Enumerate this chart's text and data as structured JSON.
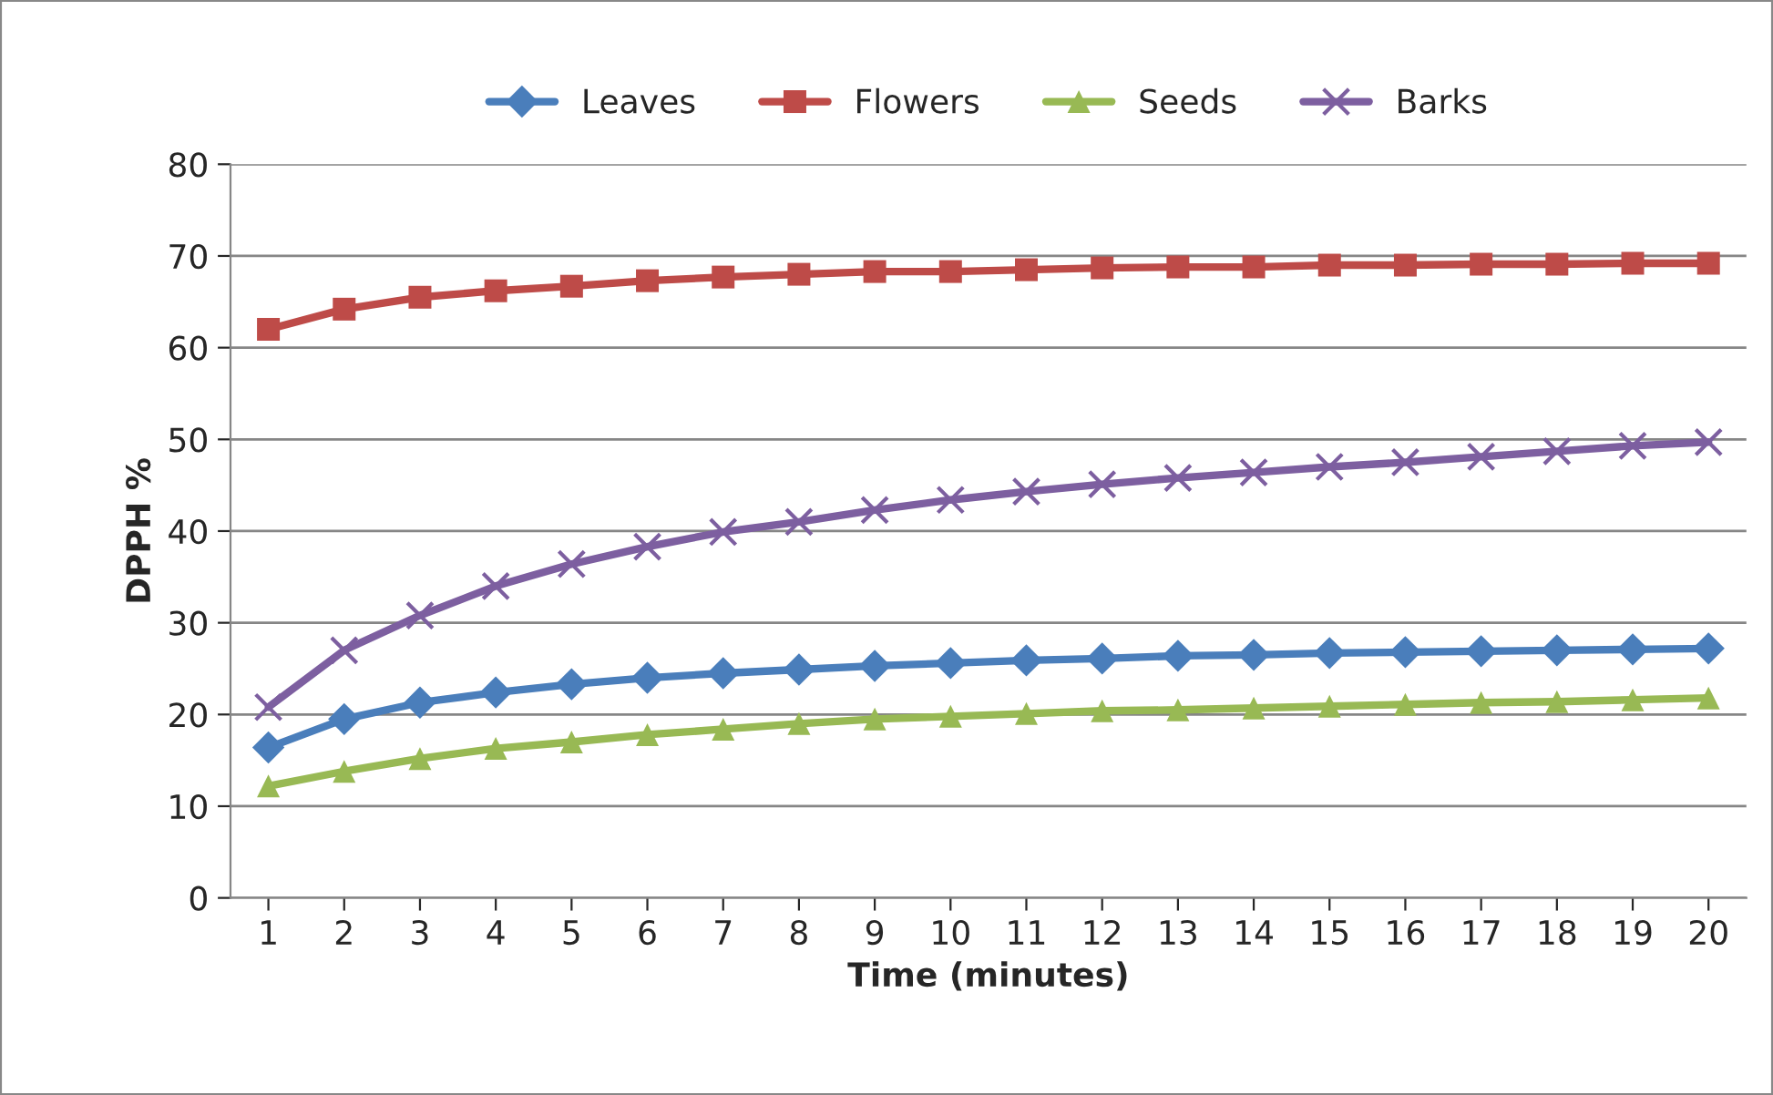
{
  "chart_data": {
    "type": "line",
    "xlabel": "Time (minutes)",
    "ylabel": "DPPH %",
    "categories": [
      "1",
      "2",
      "3",
      "4",
      "5",
      "6",
      "7",
      "8",
      "9",
      "10",
      "11",
      "12",
      "13",
      "14",
      "15",
      "16",
      "17",
      "18",
      "19",
      "20"
    ],
    "series": [
      {
        "name": "Leaves",
        "color": "#4a7ebb",
        "marker": "diamond",
        "values": [
          16.4,
          19.5,
          21.3,
          22.4,
          23.3,
          24,
          24.5,
          24.9,
          25.3,
          25.6,
          25.9,
          26.1,
          26.4,
          26.5,
          26.7,
          26.8,
          26.9,
          27,
          27.1,
          27.2
        ]
      },
      {
        "name": "Flowers",
        "color": "#be4b48",
        "marker": "square",
        "values": [
          62,
          64.2,
          65.5,
          66.2,
          66.7,
          67.3,
          67.7,
          68,
          68.3,
          68.3,
          68.5,
          68.7,
          68.8,
          68.8,
          69,
          69,
          69.1,
          69.1,
          69.2,
          69.2
        ]
      },
      {
        "name": "Seeds",
        "color": "#98b954",
        "marker": "triangle",
        "values": [
          12.2,
          13.8,
          15.2,
          16.3,
          17,
          17.8,
          18.4,
          19,
          19.5,
          19.8,
          20.1,
          20.4,
          20.5,
          20.7,
          20.9,
          21.1,
          21.3,
          21.4,
          21.6,
          21.8
        ]
      },
      {
        "name": "Barks",
        "color": "#7d5fa0",
        "marker": "cross",
        "values": [
          20.8,
          27,
          30.8,
          34,
          36.4,
          38.3,
          39.9,
          41,
          42.3,
          43.4,
          44.3,
          45.1,
          45.8,
          46.4,
          47,
          47.5,
          48.1,
          48.7,
          49.3,
          49.7
        ]
      }
    ],
    "ylim": [
      0,
      80
    ],
    "yticks": [
      0,
      10,
      20,
      30,
      40,
      50,
      60,
      70,
      80
    ],
    "grid": "y",
    "legend": "top",
    "line_style": "solid"
  }
}
